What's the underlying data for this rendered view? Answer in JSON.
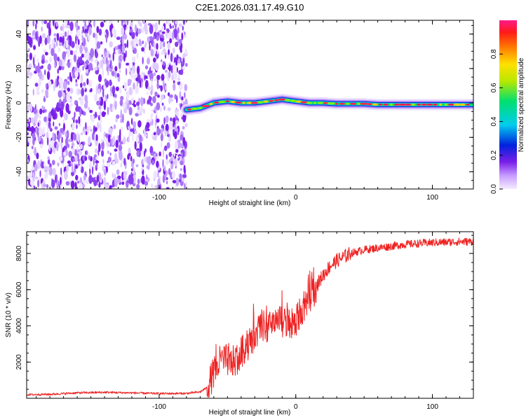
{
  "title": "C2E1.2026.031.17.49.G10",
  "colors": {
    "speckle": "#7a1fe8",
    "snr_line": "#ee2222",
    "band_core": "#ff2050",
    "band_mid": "#00dd66",
    "band_outer": "#0022cc"
  },
  "chart_data": [
    {
      "type": "heatmap",
      "name": "spectrogram",
      "xlabel": "Height of straight line (km)",
      "ylabel": "Frequency (Hz)",
      "xlim": [
        -197,
        130
      ],
      "ylim": [
        -50,
        48
      ],
      "x_ticks": [
        -100,
        0,
        100
      ],
      "x_tick_labels": [
        "-100",
        "0",
        "100"
      ],
      "y_ticks": [
        -40,
        -20,
        0,
        20,
        40
      ],
      "y_tick_labels": [
        "-40",
        "-20",
        "0",
        "20",
        "40"
      ],
      "noise_region_x": [
        -197,
        -80
      ],
      "signal_start_x": -80,
      "signal_trace": {
        "x": [
          -80,
          -70,
          -60,
          -50,
          -40,
          -30,
          -20,
          -10,
          0,
          10,
          20,
          30,
          40,
          50,
          60,
          70,
          80,
          90,
          100,
          110,
          120,
          130
        ],
        "freq_hz": [
          -4,
          -3,
          0,
          1,
          0,
          0,
          1,
          2,
          1,
          0,
          0,
          -0.5,
          -0.5,
          -0.5,
          -1,
          -1,
          -1,
          -1,
          -1,
          -1,
          -1,
          -1
        ]
      },
      "colorbar": {
        "label": "Normalized spectral amplitude",
        "range": [
          0,
          1
        ],
        "ticks": [
          0.0,
          0.2,
          0.4,
          0.6,
          0.8
        ],
        "tick_labels": [
          "0.0",
          "0.2",
          "0.4",
          "0.6",
          "0.8"
        ]
      },
      "grid": false
    },
    {
      "type": "line",
      "name": "snr",
      "xlabel": "Height of straight line (km)",
      "ylabel": "SNR (10 * v/v)",
      "xlim": [
        -197,
        130
      ],
      "ylim": [
        0,
        9200
      ],
      "x_ticks": [
        -100,
        0,
        100
      ],
      "x_tick_labels": [
        "-100",
        "0",
        "100"
      ],
      "y_ticks": [
        2000,
        4000,
        6000,
        8000
      ],
      "y_tick_labels": [
        "2000",
        "4000",
        "6000",
        "8000"
      ],
      "grid": false,
      "series": [
        {
          "name": "SNR",
          "x": [
            -197,
            -180,
            -160,
            -140,
            -120,
            -100,
            -80,
            -70,
            -65,
            -60,
            -55,
            -50,
            -45,
            -40,
            -35,
            -30,
            -25,
            -20,
            -15,
            -10,
            -5,
            0,
            5,
            10,
            15,
            20,
            25,
            30,
            40,
            50,
            60,
            70,
            80,
            90,
            100,
            110,
            120,
            130
          ],
          "values": [
            200,
            220,
            300,
            330,
            300,
            260,
            270,
            350,
            600,
            1400,
            2100,
            2100,
            2000,
            2500,
            3000,
            3500,
            4000,
            3900,
            4000,
            4300,
            4000,
            4200,
            5000,
            5600,
            6200,
            6800,
            7300,
            7600,
            8000,
            8200,
            8300,
            8400,
            8500,
            8550,
            8600,
            8620,
            8650,
            8650
          ]
        }
      ]
    }
  ]
}
